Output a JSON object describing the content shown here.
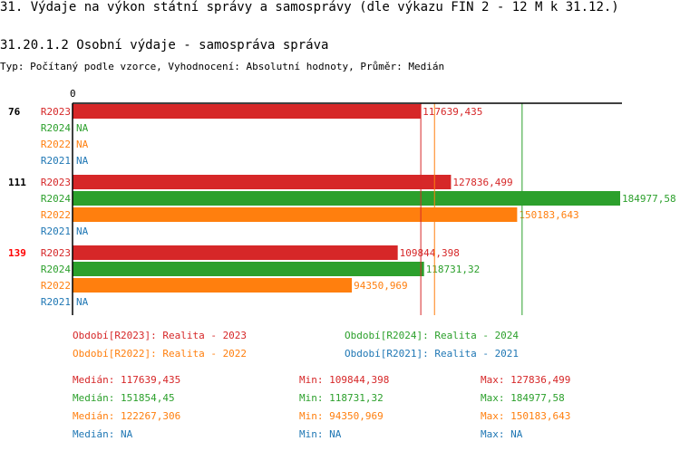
{
  "title": "31. Výdaje na výkon státní správy a samosprávy (dle výkazu FIN 2 - 12 M k 31.12.)",
  "subtitle": "31.20.1.2 Osobní výdaje - samospráva správa",
  "info": "Typ: Počítaný podle vzorce, Vyhodnocení: Absolutní hodnoty, Průměr: Medián",
  "chart_data": {
    "type": "bar",
    "orientation": "horizontal",
    "x_tick": "0",
    "xlim": [
      0,
      184977.58
    ],
    "groups": [
      {
        "label": "76",
        "label_color": "#000000",
        "values": [
          {
            "series": "R2023",
            "value": 117639.435,
            "text": "117639,435"
          },
          {
            "series": "R2024",
            "value": null,
            "text": "NA"
          },
          {
            "series": "R2022",
            "value": null,
            "text": "NA"
          },
          {
            "series": "R2021",
            "value": null,
            "text": "NA"
          }
        ]
      },
      {
        "label": "111",
        "label_color": "#000000",
        "values": [
          {
            "series": "R2023",
            "value": 127836.499,
            "text": "127836,499"
          },
          {
            "series": "R2024",
            "value": 184977.58,
            "text": "184977,58"
          },
          {
            "series": "R2022",
            "value": 150183.643,
            "text": "150183,643"
          },
          {
            "series": "R2021",
            "value": null,
            "text": "NA"
          }
        ]
      },
      {
        "label": "139",
        "label_color": "#ff0000",
        "values": [
          {
            "series": "R2023",
            "value": 109844.398,
            "text": "109844,398"
          },
          {
            "series": "R2024",
            "value": 118731.32,
            "text": "118731,32"
          },
          {
            "series": "R2022",
            "value": 94350.969,
            "text": "94350,969"
          },
          {
            "series": "R2021",
            "value": null,
            "text": "NA"
          }
        ]
      }
    ],
    "series_colors": {
      "R2023": "#d62728",
      "R2024": "#2ca02c",
      "R2022": "#ff7f0e",
      "R2021": "#1f77b4"
    },
    "median_lines": [
      {
        "series": "R2023",
        "value": 117639.435
      },
      {
        "series": "R2022",
        "value": 122267.306
      },
      {
        "series": "R2024",
        "value": 151854.45
      }
    ],
    "legend": [
      {
        "text": "Období[R2023]: Realita - 2023",
        "color": "#d62728"
      },
      {
        "text": "Období[R2024]: Realita - 2024",
        "color": "#2ca02c"
      },
      {
        "text": "Období[R2022]: Realita - 2022",
        "color": "#ff7f0e"
      },
      {
        "text": "Období[R2021]: Realita - 2021",
        "color": "#1f77b4"
      }
    ],
    "stats": [
      {
        "color": "#d62728",
        "median": "Medián: 117639,435",
        "min": "Min: 109844,398",
        "max": "Max: 127836,499"
      },
      {
        "color": "#2ca02c",
        "median": "Medián: 151854,45",
        "min": "Min: 118731,32",
        "max": "Max: 184977,58"
      },
      {
        "color": "#ff7f0e",
        "median": "Medián: 122267,306",
        "min": "Min: 94350,969",
        "max": "Max: 150183,643"
      },
      {
        "color": "#1f77b4",
        "median": "Medián: NA",
        "min": "Min: NA",
        "max": "Max: NA"
      }
    ]
  }
}
